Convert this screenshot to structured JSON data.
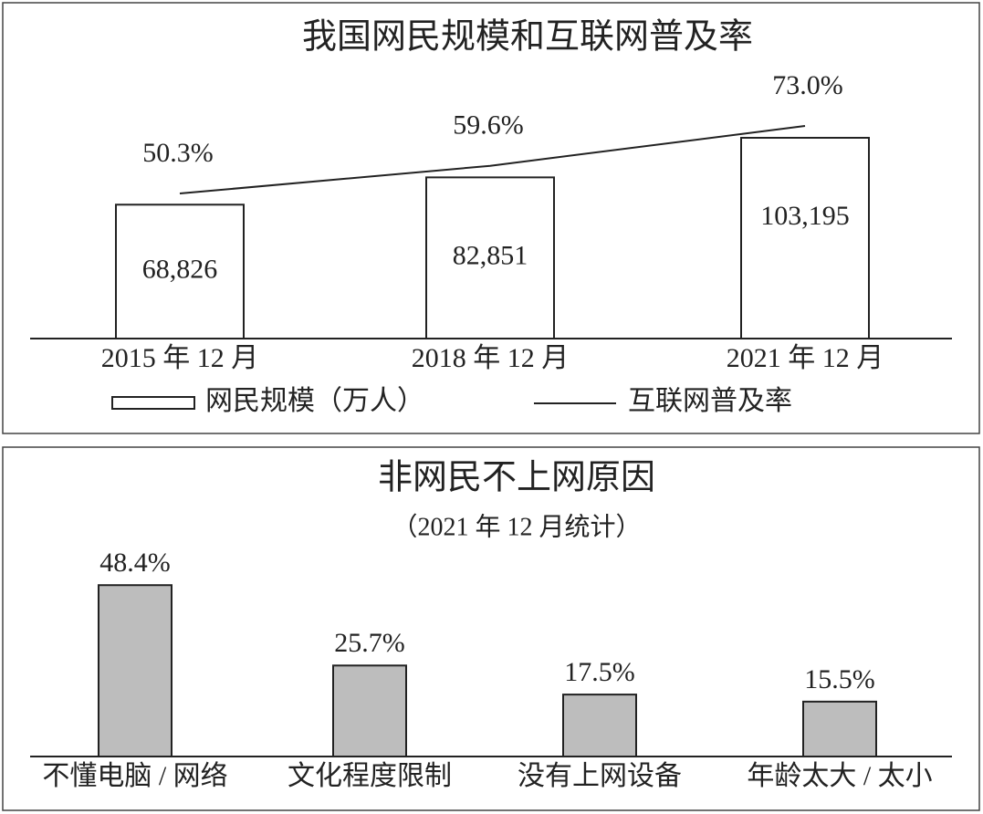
{
  "chart_data": [
    {
      "type": "bar_line",
      "title": "我国网民规模和互联网普及率",
      "categories": [
        "2015 年 12 月",
        "2018 年 12 月",
        "2021 年 12 月"
      ],
      "series": [
        {
          "name": "网民规模（万人）",
          "type": "bar",
          "color": "#ffffff",
          "values": [
            68826,
            82851,
            103195
          ],
          "value_labels": [
            "68,826",
            "82,851",
            "103,195"
          ]
        },
        {
          "name": "互联网普及率",
          "type": "line",
          "color": "#222222",
          "values": [
            50.3,
            59.6,
            73.0
          ],
          "value_labels": [
            "50.3%",
            "59.6%",
            "73.0%"
          ]
        }
      ]
    },
    {
      "type": "bar",
      "title": "非网民不上网原因",
      "subtitle": "（2021 年 12 月统计）",
      "categories": [
        "不懂电脑 / 网络",
        "文化程度限制",
        "没有上网设备",
        "年龄太大 / 太小"
      ],
      "color": "#bdbdbd",
      "values": [
        48.4,
        25.7,
        17.5,
        15.5
      ],
      "value_labels": [
        "48.4%",
        "25.7%",
        "17.5%",
        "15.5%"
      ]
    }
  ]
}
